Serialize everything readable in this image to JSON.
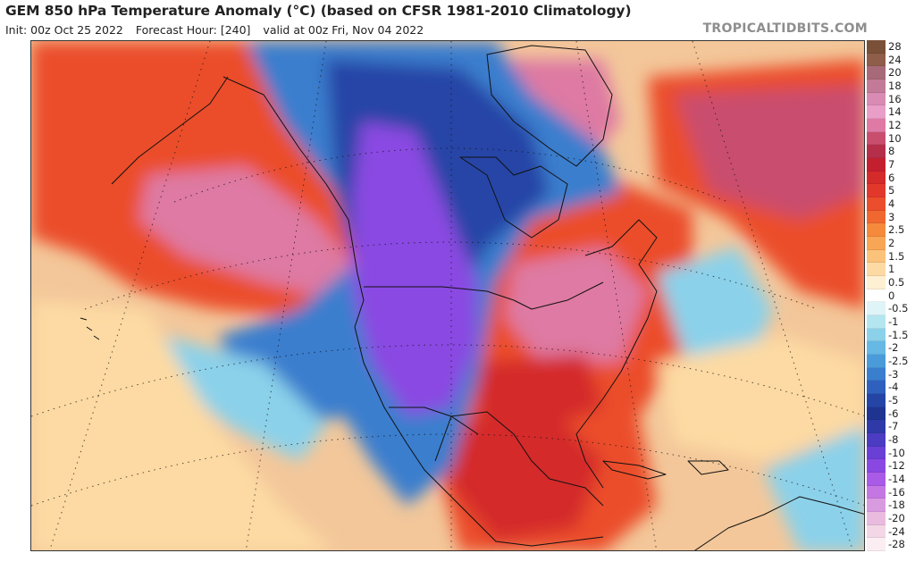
{
  "header": {
    "title": "GEM 850 hPa Temperature Anomaly (°C) (based on CFSR 1981-2010 Climatology)",
    "init": "Init: 00z Oct 25 2022",
    "forecast_hour": "Forecast Hour: [240]",
    "valid": "valid at 00z Fri, Nov 04 2022",
    "source": "TROPICALTIDBITS.COM"
  },
  "legend": {
    "items": [
      {
        "label": "28",
        "color": "#7a5038"
      },
      {
        "label": "24",
        "color": "#8e5e4a"
      },
      {
        "label": "20",
        "color": "#a86a78"
      },
      {
        "label": "18",
        "color": "#c27a98"
      },
      {
        "label": "16",
        "color": "#d98bb4"
      },
      {
        "label": "14",
        "color": "#e99ec8"
      },
      {
        "label": "12",
        "color": "#de7aa3"
      },
      {
        "label": "10",
        "color": "#c94e6e"
      },
      {
        "label": "8",
        "color": "#b52f4a"
      },
      {
        "label": "7",
        "color": "#c41f2f"
      },
      {
        "label": "6",
        "color": "#d42a2a"
      },
      {
        "label": "5",
        "color": "#e2382b"
      },
      {
        "label": "4",
        "color": "#eb4e2c"
      },
      {
        "label": "3",
        "color": "#f0682f"
      },
      {
        "label": "2.5",
        "color": "#f58a3c"
      },
      {
        "label": "2",
        "color": "#f8a555"
      },
      {
        "label": "1.5",
        "color": "#fbc27a"
      },
      {
        "label": "1",
        "color": "#fddaa3"
      },
      {
        "label": "0.5",
        "color": "#fef0d2"
      },
      {
        "label": "0",
        "color": "#ffffff"
      },
      {
        "label": "-0.5",
        "color": "#dff4f7"
      },
      {
        "label": "-1",
        "color": "#b4e6f0"
      },
      {
        "label": "-1.5",
        "color": "#8bd1ea"
      },
      {
        "label": "-2",
        "color": "#66b8e5"
      },
      {
        "label": "-2.5",
        "color": "#4a9bd9"
      },
      {
        "label": "-3",
        "color": "#3a7ece"
      },
      {
        "label": "-4",
        "color": "#2f60bd"
      },
      {
        "label": "-5",
        "color": "#2545a6"
      },
      {
        "label": "-6",
        "color": "#1f3490"
      },
      {
        "label": "-7",
        "color": "#2f3aa8"
      },
      {
        "label": "-8",
        "color": "#4b3cc2"
      },
      {
        "label": "-10",
        "color": "#6a3fd6"
      },
      {
        "label": "-12",
        "color": "#8a48e2"
      },
      {
        "label": "-14",
        "color": "#a95ae6"
      },
      {
        "label": "-16",
        "color": "#c477e2"
      },
      {
        "label": "-18",
        "color": "#d99be0"
      },
      {
        "label": "-20",
        "color": "#e9bcdf"
      },
      {
        "label": "-24",
        "color": "#f3d7e6"
      },
      {
        "label": "-28",
        "color": "#fbeef3"
      }
    ]
  },
  "map_colors": {
    "ocean_base": "#f3c79a",
    "warm": "#eb4e2c",
    "hot": "#d42a2a",
    "pink": "#de7aa3",
    "magenta": "#c94e6e",
    "cold": "#3a7ece",
    "deep_cold": "#2545a6",
    "violet": "#8a48e2",
    "light_blue": "#8bd1ea",
    "pale": "#fddaa3"
  }
}
